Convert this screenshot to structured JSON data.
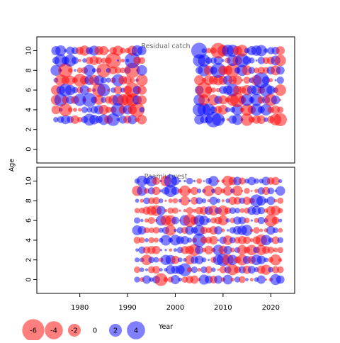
{
  "chart_data": {
    "type": "scatter",
    "subtype": "bubble-residuals",
    "y_axis_label": "Age",
    "x_axis_label": "Year",
    "x_range": [
      1971,
      2025
    ],
    "y_range": [
      -1.4,
      11.4
    ],
    "x_ticks": [
      1980,
      1990,
      2000,
      2010,
      2020
    ],
    "y_ticks": [
      0,
      2,
      4,
      6,
      8,
      10
    ],
    "colors": {
      "positive": "#0000ff",
      "negative": "#ff0000",
      "opacity": 0.5,
      "frame": "#000000"
    },
    "legend": {
      "placement": "bottom-left",
      "entries": [
        {
          "value": -6,
          "label": "-6"
        },
        {
          "value": -4,
          "label": "-4"
        },
        {
          "value": -2,
          "label": "-2"
        },
        {
          "value": 0,
          "label": "0"
        },
        {
          "value": 2,
          "label": "2"
        },
        {
          "value": 4,
          "label": "4"
        }
      ]
    },
    "panels": [
      {
        "title": "Residual catch",
        "year_blocks": [
          [
            1975,
            1993
          ],
          [
            2005,
            2022
          ]
        ],
        "ages": [
          3,
          10
        ],
        "size_scale": 1.0
      },
      {
        "title": "Paamiutwest",
        "year_blocks": [
          [
            1992,
            2022
          ]
        ],
        "ages": [
          0,
          10
        ],
        "size_scale": 0.85
      }
    ]
  }
}
